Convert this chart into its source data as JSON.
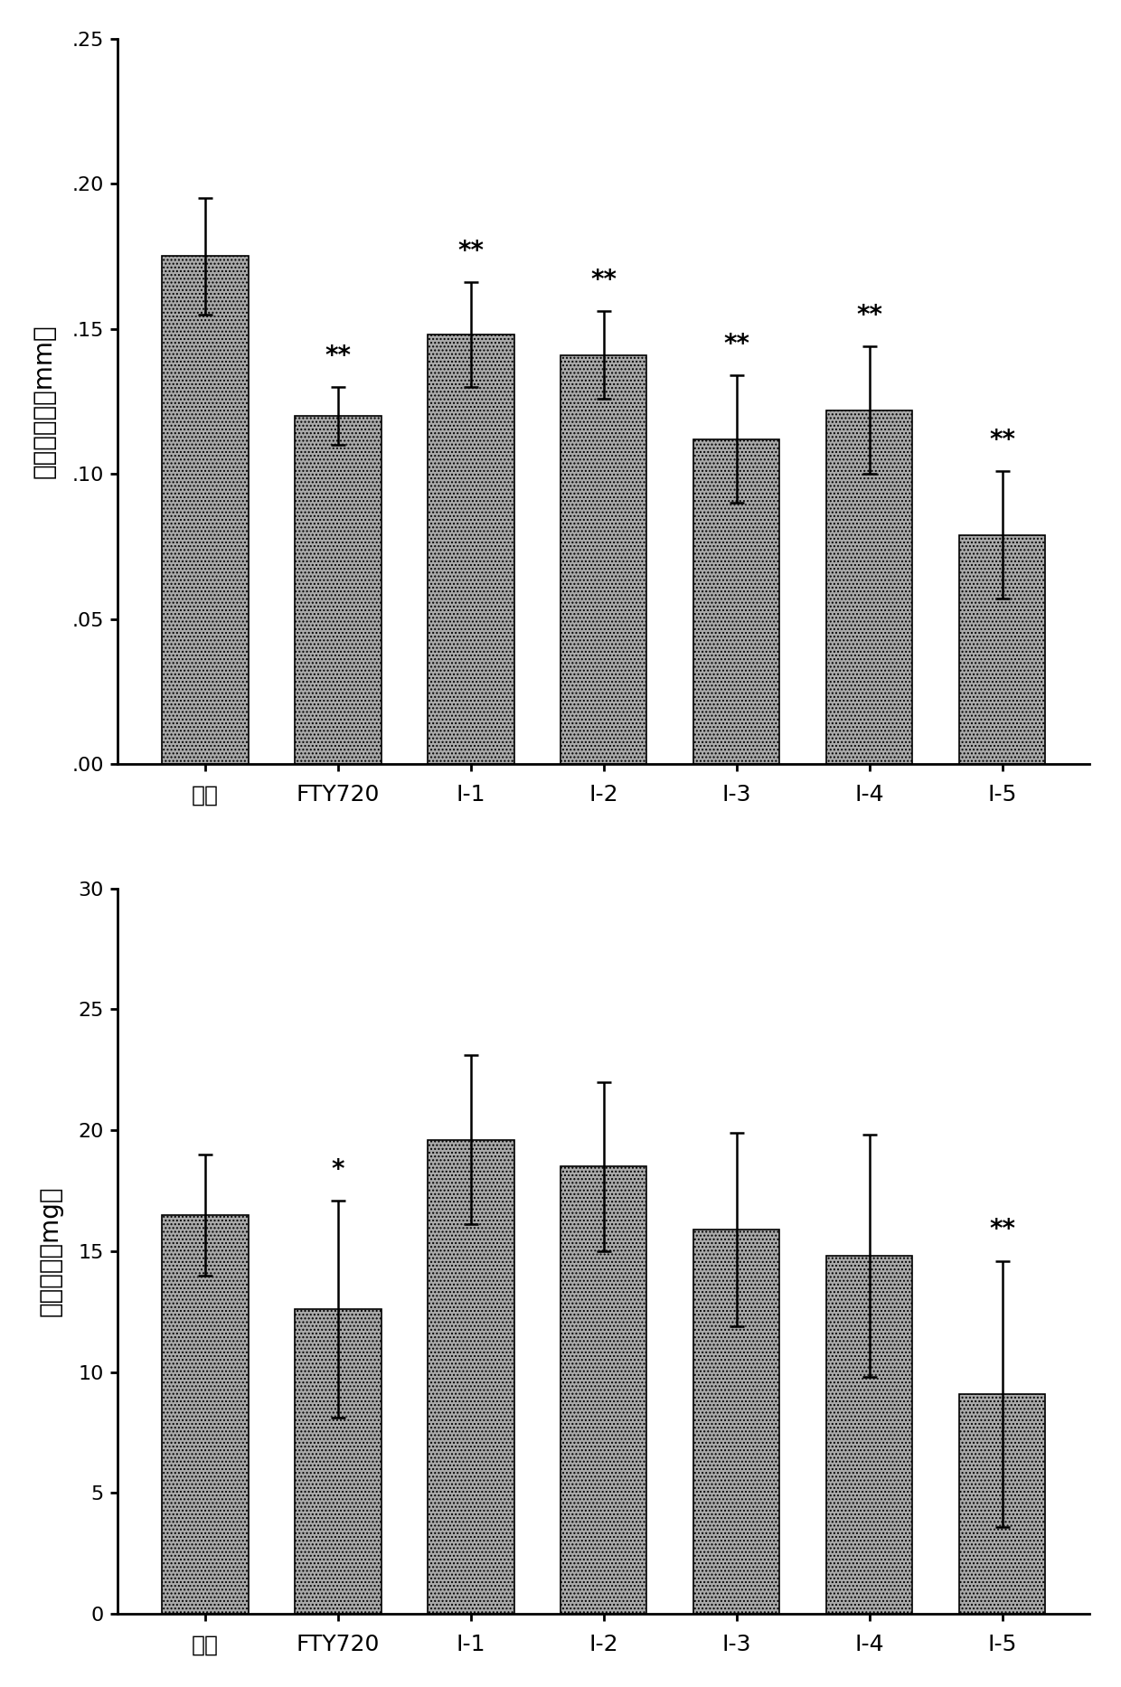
{
  "chart1": {
    "categories": [
      "模型",
      "FTY720",
      "I-1",
      "I-2",
      "I-3",
      "I-4",
      "I-5"
    ],
    "values": [
      0.175,
      0.12,
      0.148,
      0.141,
      0.112,
      0.122,
      0.079
    ],
    "errors": [
      0.02,
      0.01,
      0.018,
      0.015,
      0.022,
      0.022,
      0.022
    ],
    "significance": [
      "",
      "**",
      "**",
      "**",
      "**",
      "**",
      "**"
    ],
    "ylabel": "耳朵肿胀度（mm）",
    "ylim": [
      0,
      0.25
    ],
    "yticks": [
      0.0,
      0.05,
      0.1,
      0.15,
      0.2,
      0.25
    ],
    "yticklabels": [
      ".00",
      ".05",
      ".10",
      ".15",
      ".20",
      ".25"
    ]
  },
  "chart2": {
    "categories": [
      "模型",
      "FTY720",
      "I-1",
      "I-2",
      "I-3",
      "I-4",
      "I-5"
    ],
    "values": [
      16.5,
      12.6,
      19.6,
      18.5,
      15.9,
      14.8,
      9.1
    ],
    "errors": [
      2.5,
      4.5,
      3.5,
      3.5,
      4.0,
      5.0,
      5.5
    ],
    "significance": [
      "",
      "*",
      "",
      "",
      "",
      "",
      "**"
    ],
    "ylabel": "耳片重量（mg）",
    "ylim": [
      0,
      30
    ],
    "yticks": [
      0,
      5,
      10,
      15,
      20,
      25,
      30
    ],
    "yticklabels": [
      "0",
      "5",
      "10",
      "15",
      "20",
      "25",
      "30"
    ]
  },
  "bar_color": "#aaaaaa",
  "bar_hatch": "....",
  "bar_edgecolor": "#000000",
  "bar_width": 0.65,
  "figure_bg": "#ffffff",
  "axes_bg": "#ffffff",
  "sig_fontsize": 20,
  "ylabel_fontsize": 20,
  "tick_fontsize": 16,
  "xtick_fontsize": 18
}
